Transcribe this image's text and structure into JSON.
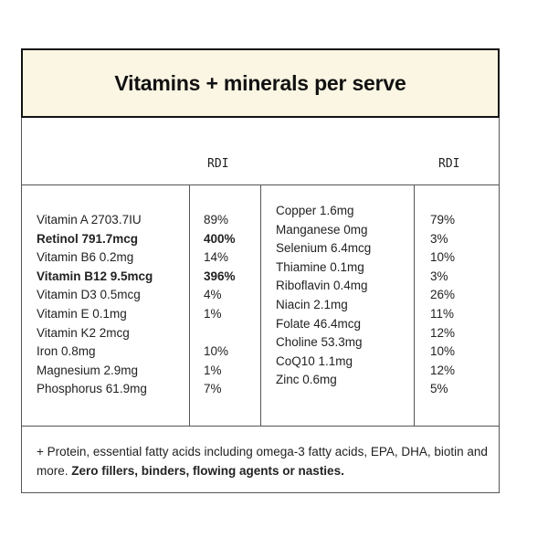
{
  "title": "Vitamins + minerals per serve",
  "rdi_header_left": "RDI",
  "rdi_header_right": "RDI",
  "left_nutrients": [
    {
      "name": "Vitamin A 2703.7IU",
      "rdi": "89%",
      "bold": false
    },
    {
      "name": "Retinol 791.7mcg",
      "rdi": "400%",
      "bold": true
    },
    {
      "name": "Vitamin B6 0.2mg",
      "rdi": "14%",
      "bold": false
    },
    {
      "name": "Vitamin B12 9.5mcg",
      "rdi": "396%",
      "bold": true
    },
    {
      "name": "Vitamin D3 0.5mcg",
      "rdi": "4%",
      "bold": false
    },
    {
      "name": "Vitamin E 0.1mg",
      "rdi": "1%",
      "bold": false
    },
    {
      "name": "Vitamin K2 2mcg",
      "rdi": "",
      "bold": false
    },
    {
      "name": "Iron 0.8mg",
      "rdi": "10%",
      "bold": false
    },
    {
      "name": "Magnesium 2.9mg",
      "rdi": "1%",
      "bold": false
    },
    {
      "name": "Phosphorus 61.9mg",
      "rdi": "7%",
      "bold": false
    }
  ],
  "right_nutrients": [
    "Copper 1.6mg",
    "Manganese 0mg",
    "Selenium 6.4mcg",
    "Thiamine 0.1mg",
    "Riboflavin 0.4mg",
    "Niacin 2.1mg",
    "Folate 46.4mcg",
    "Choline 53.3mg",
    "CoQ10 1.1mg",
    "Zinc 0.6mg"
  ],
  "right_rdi": [
    "79%",
    "3%",
    "10%",
    "3%",
    "26%",
    "11%",
    "12%",
    "10%",
    "12%",
    "5%"
  ],
  "footer": {
    "text": "+ Protein, essential fatty acids including omega-3 fatty acids, EPA, DHA, biotin and more. ",
    "emphasis": "Zero fillers, binders, flowing agents or nasties."
  }
}
